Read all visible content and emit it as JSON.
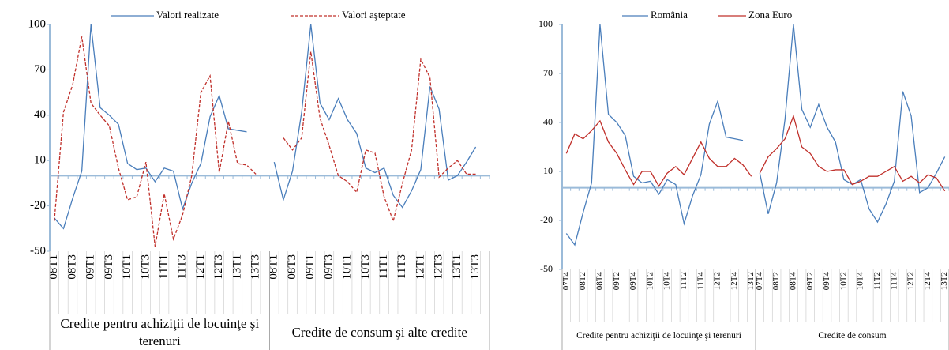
{
  "chart_data": [
    {
      "type": "line",
      "categories": [
        "08T1",
        null,
        "08T3",
        null,
        "09T1",
        null,
        "09T3",
        null,
        "10T1",
        null,
        "10T3",
        null,
        "11T1",
        null,
        "11T3",
        null,
        "12T1",
        null,
        "12T3",
        null,
        "13T1",
        null,
        "13T3",
        null,
        "08T1",
        null,
        "08T3",
        null,
        "09T1",
        null,
        "09T3",
        null,
        "10T1",
        null,
        "10T3",
        null,
        "11T1",
        null,
        "11T3",
        null,
        "12T1",
        null,
        "12T3",
        null,
        "13T1",
        null,
        "13T3",
        null
      ],
      "groups": [
        "Credite pentru achiziţii de locuinţe şi terenuri",
        "Credite de consum şi alte credite"
      ],
      "series": [
        {
          "name": "Valori realizate",
          "color": "#4a7ebb",
          "style": "solid",
          "values": [
            -28,
            -35,
            -15,
            3,
            100,
            45,
            40,
            34,
            8,
            4,
            5,
            -4,
            5,
            3,
            -22,
            -5,
            8,
            39,
            53,
            31,
            30,
            29,
            null,
            null,
            9,
            -16,
            3,
            42,
            100,
            48,
            37,
            51,
            37,
            28,
            5,
            2,
            5,
            -13,
            -21,
            -10,
            4,
            59,
            44,
            -3,
            0,
            9,
            19,
            null
          ]
        },
        {
          "name": "Valori aşteptate",
          "color": "#c0302b",
          "style": "dashed",
          "values": [
            -30,
            42,
            60,
            92,
            48,
            40,
            33,
            5,
            -16,
            -14,
            9,
            -47,
            -12,
            -42,
            -26,
            0,
            55,
            66,
            2,
            36,
            8,
            7,
            1,
            null,
            null,
            25,
            17,
            25,
            82,
            38,
            20,
            0,
            -4,
            -11,
            17,
            15,
            -14,
            -30,
            -5,
            17,
            77,
            65,
            -1,
            5,
            10,
            1,
            1,
            null
          ]
        }
      ],
      "ylim": [
        -50,
        100
      ],
      "yticks": [
        -50,
        -20,
        10,
        40,
        70,
        100
      ],
      "legend": "top"
    },
    {
      "type": "line",
      "categories": [
        "07T4",
        null,
        "08T2",
        null,
        "08T4",
        null,
        "09T2",
        null,
        "09T4",
        null,
        "10T2",
        null,
        "10T4",
        null,
        "11T2",
        null,
        "11T4",
        null,
        "12T2",
        null,
        "12T4",
        null,
        "13T2",
        "07T4",
        null,
        "08T2",
        null,
        "08T4",
        null,
        "09T2",
        null,
        "09T4",
        null,
        "10T2",
        null,
        "10T4",
        null,
        "11T2",
        null,
        "11T4",
        null,
        "12T2",
        null,
        "12T4",
        null,
        "13T2"
      ],
      "groups": [
        "Credite pentru achiziţii de locuinţe şi terenuri",
        "Credite de consum"
      ],
      "series": [
        {
          "name": "România",
          "color": "#4a7ebb",
          "style": "solid",
          "values": [
            -28,
            -35,
            -15,
            3,
            100,
            45,
            40,
            32,
            7,
            3,
            4,
            -4,
            5,
            2,
            -22,
            -5,
            8,
            39,
            53,
            31,
            30,
            29,
            null,
            9,
            -16,
            3,
            42,
            100,
            48,
            37,
            51,
            37,
            28,
            5,
            2,
            5,
            -13,
            -21,
            -10,
            4,
            59,
            44,
            -3,
            0,
            9,
            19
          ]
        },
        {
          "name": "Zona Euro",
          "color": "#c0302b",
          "style": "solid",
          "values": [
            21,
            33,
            30,
            35,
            41,
            28,
            21,
            11,
            2,
            10,
            10,
            1,
            9,
            13,
            8,
            18,
            28,
            18,
            13,
            13,
            18,
            14,
            7,
            9,
            19,
            24,
            30,
            44,
            25,
            21,
            13,
            10,
            11,
            11,
            2,
            4,
            7,
            7,
            10,
            13,
            4,
            7,
            3,
            8,
            6,
            -2
          ]
        }
      ],
      "ylim": [
        -50,
        100
      ],
      "yticks": [
        -50,
        -20,
        10,
        40,
        70,
        100
      ],
      "legend": "top"
    }
  ]
}
